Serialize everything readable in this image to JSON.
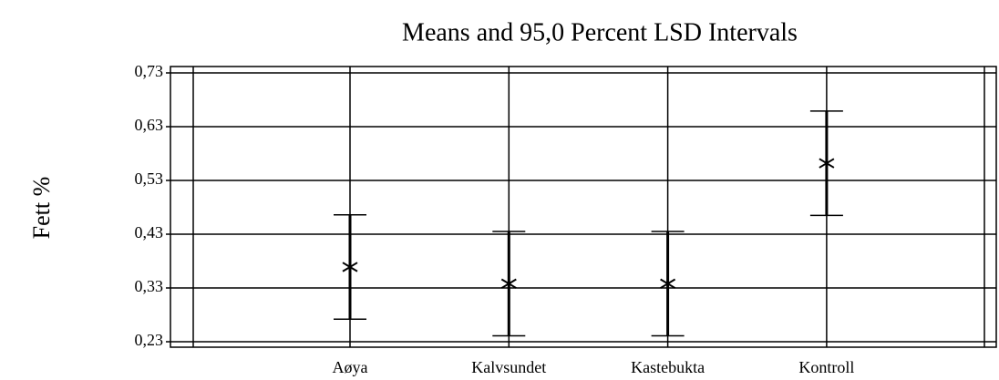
{
  "chart_data": {
    "type": "errorbar",
    "title": "Means and 95,0 Percent LSD Intervals",
    "y_label": "Fett %",
    "categories": [
      "Aøya",
      "Kalvsundet",
      "Kastebukta",
      "Kontroll"
    ],
    "values": [
      0.369,
      0.338,
      0.338,
      0.562
    ],
    "errors": [
      0.097,
      0.097,
      0.097,
      0.097
    ],
    "color": "#000000",
    "ylim": [
      0.23,
      0.73
    ],
    "yticks": [
      {
        "value": 0.23,
        "label": "0,23"
      },
      {
        "value": 0.33,
        "label": "0,33"
      },
      {
        "value": 0.43,
        "label": "0,43"
      },
      {
        "value": 0.53,
        "label": "0,53"
      },
      {
        "value": 0.63,
        "label": "0,63"
      },
      {
        "value": 0.73,
        "label": "0,73"
      }
    ],
    "grid": true
  }
}
